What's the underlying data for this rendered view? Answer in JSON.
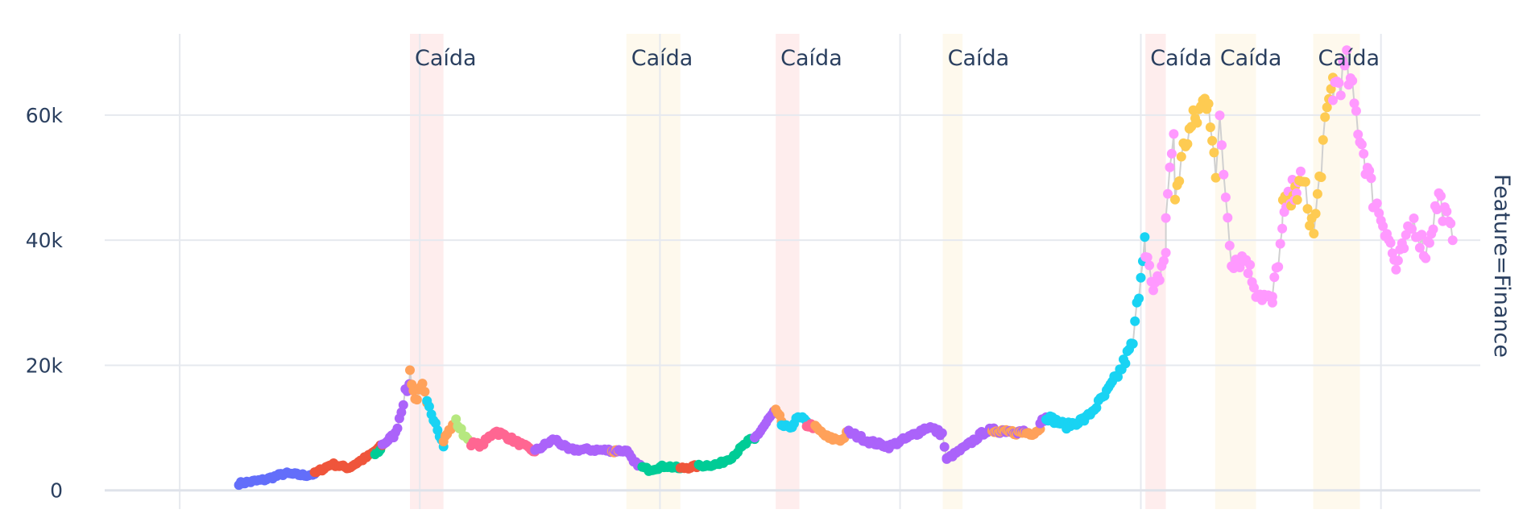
{
  "chart_data": {
    "type": "scatter",
    "facet_label": "Feature=Finance",
    "annotation_label": "Caída",
    "ylim": [
      -3000,
      73000
    ],
    "xlim": [
      "2016-09-09",
      "2022-06-01"
    ],
    "y_ticks": [
      0,
      20000,
      40000,
      60000
    ],
    "y_tick_labels": [
      "0",
      "20k",
      "40k",
      "60k"
    ],
    "x_gridlines": [
      "2017-01-01",
      "2018-01-01",
      "2019-01-01",
      "2020-01-01",
      "2021-01-01",
      "2022-01-01"
    ],
    "grid": true,
    "line_color": "#d0d0d0",
    "crash_periods": [
      {
        "label": "Caída",
        "start": "2017-12-17",
        "end": "2018-02-06",
        "color": "#fde5e5"
      },
      {
        "label": "Caída",
        "start": "2018-11-11",
        "end": "2019-02-01",
        "color": "#fef6e6"
      },
      {
        "label": "Caída",
        "start": "2019-06-26",
        "end": "2019-08-01",
        "color": "#fde5e5"
      },
      {
        "label": "Caída",
        "start": "2020-03-06",
        "end": "2020-04-05",
        "color": "#fef6e6"
      },
      {
        "label": "Caída",
        "start": "2021-01-08",
        "end": "2021-02-08",
        "color": "#fde5e5"
      },
      {
        "label": "Caída",
        "start": "2021-04-24",
        "end": "2021-06-25",
        "color": "#fef6e6"
      },
      {
        "label": "Caída",
        "start": "2021-09-20",
        "end": "2021-11-30",
        "color": "#fef6e6"
      }
    ],
    "segments": [
      {
        "color": "#636efa",
        "points": [
          [
            "2017-04-01",
            1100
          ],
          [
            "2017-05-10",
            1700
          ],
          [
            "2017-06-10",
            2700
          ],
          [
            "2017-07-10",
            2400
          ],
          [
            "2017-07-25",
            2600
          ]
        ]
      },
      {
        "color": "#ef553b",
        "points": [
          [
            "2017-07-25",
            2700
          ],
          [
            "2017-08-20",
            4200
          ],
          [
            "2017-09-15",
            3600
          ],
          [
            "2017-10-15",
            5500
          ],
          [
            "2017-11-05",
            7200
          ]
        ]
      },
      {
        "color": "#00cc96",
        "points": [
          [
            "2017-10-25",
            5800
          ],
          [
            "2017-11-02",
            6500
          ]
        ]
      },
      {
        "color": "#ab63fa",
        "points": [
          [
            "2017-11-05",
            7300
          ],
          [
            "2017-11-25",
            9000
          ],
          [
            "2017-12-10",
            15500
          ],
          [
            "2017-12-16",
            17000
          ]
        ]
      },
      {
        "color": "#ffa15a",
        "points": [
          [
            "2017-12-17",
            19000
          ],
          [
            "2017-12-25",
            14500
          ],
          [
            "2018-01-05",
            16500
          ],
          [
            "2018-01-12",
            14000
          ]
        ]
      },
      {
        "color": "#19d3f3",
        "points": [
          [
            "2018-01-12",
            13800
          ],
          [
            "2018-01-25",
            11000
          ],
          [
            "2018-02-06",
            7000
          ]
        ]
      },
      {
        "color": "#ffa15a",
        "points": [
          [
            "2018-02-06",
            8000
          ],
          [
            "2018-02-20",
            10500
          ]
        ]
      },
      {
        "color": "#b6e880",
        "points": [
          [
            "2018-02-25",
            11000
          ],
          [
            "2018-03-05",
            9500
          ],
          [
            "2018-03-15",
            8200
          ]
        ]
      },
      {
        "color": "#ff6692",
        "points": [
          [
            "2018-03-20",
            7500
          ],
          [
            "2018-04-05",
            7200
          ],
          [
            "2018-04-25",
            9500
          ],
          [
            "2018-05-15",
            8500
          ],
          [
            "2018-06-01",
            7500
          ],
          [
            "2018-06-25",
            6200
          ]
        ]
      },
      {
        "color": "#ab63fa",
        "points": [
          [
            "2018-06-25",
            6300
          ],
          [
            "2018-07-25",
            8200
          ],
          [
            "2018-08-15",
            6500
          ],
          [
            "2018-09-15",
            6500
          ],
          [
            "2018-10-15",
            6400
          ],
          [
            "2018-11-12",
            6300
          ]
        ]
      },
      {
        "color": "#ffa15a",
        "points": [
          [
            "2018-10-20",
            6300
          ],
          [
            "2018-10-30",
            6300
          ]
        ]
      },
      {
        "color": "#ab63fa",
        "points": [
          [
            "2018-11-12",
            6200
          ],
          [
            "2018-11-22",
            4500
          ],
          [
            "2018-12-05",
            3800
          ]
        ]
      },
      {
        "color": "#00cc96",
        "points": [
          [
            "2018-12-05",
            3700
          ],
          [
            "2018-12-15",
            3300
          ],
          [
            "2019-01-10",
            3900
          ],
          [
            "2019-02-01",
            3500
          ]
        ]
      },
      {
        "color": "#ef553b",
        "points": [
          [
            "2019-02-01",
            3500
          ],
          [
            "2019-03-01",
            3900
          ]
        ]
      },
      {
        "color": "#00cc96",
        "points": [
          [
            "2019-03-01",
            3900
          ],
          [
            "2019-04-01",
            4200
          ],
          [
            "2019-04-20",
            5300
          ],
          [
            "2019-05-15",
            7800
          ],
          [
            "2019-05-25",
            8200
          ]
        ]
      },
      {
        "color": "#ab63fa",
        "points": [
          [
            "2019-05-25",
            8300
          ],
          [
            "2019-06-26",
            12800
          ]
        ]
      },
      {
        "color": "#ffa15a",
        "points": [
          [
            "2019-06-26",
            12500
          ],
          [
            "2019-07-05",
            11000
          ]
        ]
      },
      {
        "color": "#19d3f3",
        "points": [
          [
            "2019-07-05",
            10500
          ],
          [
            "2019-07-15",
            9800
          ],
          [
            "2019-07-30",
            11500
          ],
          [
            "2019-08-12",
            11000
          ]
        ]
      },
      {
        "color": "#ff6692",
        "points": [
          [
            "2019-08-12",
            10500
          ],
          [
            "2019-08-25",
            10200
          ]
        ]
      },
      {
        "color": "#ffa15a",
        "points": [
          [
            "2019-08-25",
            10000
          ],
          [
            "2019-09-15",
            8300
          ],
          [
            "2019-10-05",
            8100
          ],
          [
            "2019-10-15",
            9500
          ]
        ]
      },
      {
        "color": "#ab63fa",
        "points": [
          [
            "2019-10-15",
            9300
          ],
          [
            "2019-11-15",
            7800
          ],
          [
            "2019-12-15",
            7000
          ],
          [
            "2020-01-15",
            8500
          ],
          [
            "2020-02-13",
            10200
          ],
          [
            "2020-03-05",
            9000
          ],
          [
            "2020-03-12",
            5000
          ]
        ]
      },
      {
        "color": "#ab63fa",
        "points": [
          [
            "2020-03-12",
            5000
          ],
          [
            "2020-04-10",
            7000
          ],
          [
            "2020-05-10",
            9500
          ],
          [
            "2020-06-10",
            9600
          ],
          [
            "2020-07-10",
            9300
          ]
        ]
      },
      {
        "color": "#ffa15a",
        "points": [
          [
            "2020-05-20",
            9300
          ],
          [
            "2020-07-20",
            9200
          ],
          [
            "2020-08-01",
            9800
          ]
        ]
      },
      {
        "color": "#ab63fa",
        "points": [
          [
            "2020-08-01",
            11000
          ],
          [
            "2020-08-10",
            11700
          ]
        ]
      },
      {
        "color": "#19d3f3",
        "points": [
          [
            "2020-08-10",
            11800
          ],
          [
            "2020-09-10",
            10300
          ],
          [
            "2020-10-10",
            11500
          ],
          [
            "2020-11-10",
            15500
          ],
          [
            "2020-11-30",
            19000
          ],
          [
            "2020-12-20",
            23500
          ],
          [
            "2021-01-07",
            40500
          ]
        ]
      },
      {
        "color": "#ff99ff",
        "points": [
          [
            "2021-01-08",
            39000
          ],
          [
            "2021-01-20",
            31000
          ],
          [
            "2021-02-08",
            38000
          ]
        ]
      },
      {
        "color": "#ff99ff",
        "points": [
          [
            "2021-02-08",
            44000
          ],
          [
            "2021-02-20",
            57000
          ]
        ]
      },
      {
        "color": "#fecb52",
        "points": [
          [
            "2021-02-22",
            47000
          ],
          [
            "2021-03-10",
            56000
          ],
          [
            "2021-04-14",
            63500
          ],
          [
            "2021-04-25",
            50000
          ]
        ]
      },
      {
        "color": "#ff99ff",
        "points": [
          [
            "2021-05-01",
            58000
          ],
          [
            "2021-05-19",
            37000
          ],
          [
            "2021-06-10",
            37000
          ],
          [
            "2021-06-25",
            32000
          ],
          [
            "2021-07-20",
            30000
          ]
        ]
      },
      {
        "color": "#ff99ff",
        "points": [
          [
            "2021-07-20",
            31000
          ],
          [
            "2021-08-10",
            45000
          ],
          [
            "2021-09-01",
            51000
          ]
        ]
      },
      {
        "color": "#fecb52",
        "points": [
          [
            "2021-08-05",
            45000
          ],
          [
            "2021-09-05",
            49000
          ],
          [
            "2021-09-21",
            41000
          ],
          [
            "2021-10-05",
            55000
          ],
          [
            "2021-10-20",
            66000
          ]
        ]
      },
      {
        "color": "#ff99ff",
        "points": [
          [
            "2021-10-20",
            64000
          ],
          [
            "2021-11-10",
            67500
          ],
          [
            "2021-11-30",
            57000
          ],
          [
            "2021-12-20",
            47000
          ],
          [
            "2022-01-10",
            41500
          ],
          [
            "2022-01-24",
            35500
          ],
          [
            "2022-02-20",
            43000
          ],
          [
            "2022-03-10",
            38000
          ],
          [
            "2022-03-30",
            47000
          ],
          [
            "2022-04-20",
            40000
          ]
        ]
      }
    ]
  }
}
